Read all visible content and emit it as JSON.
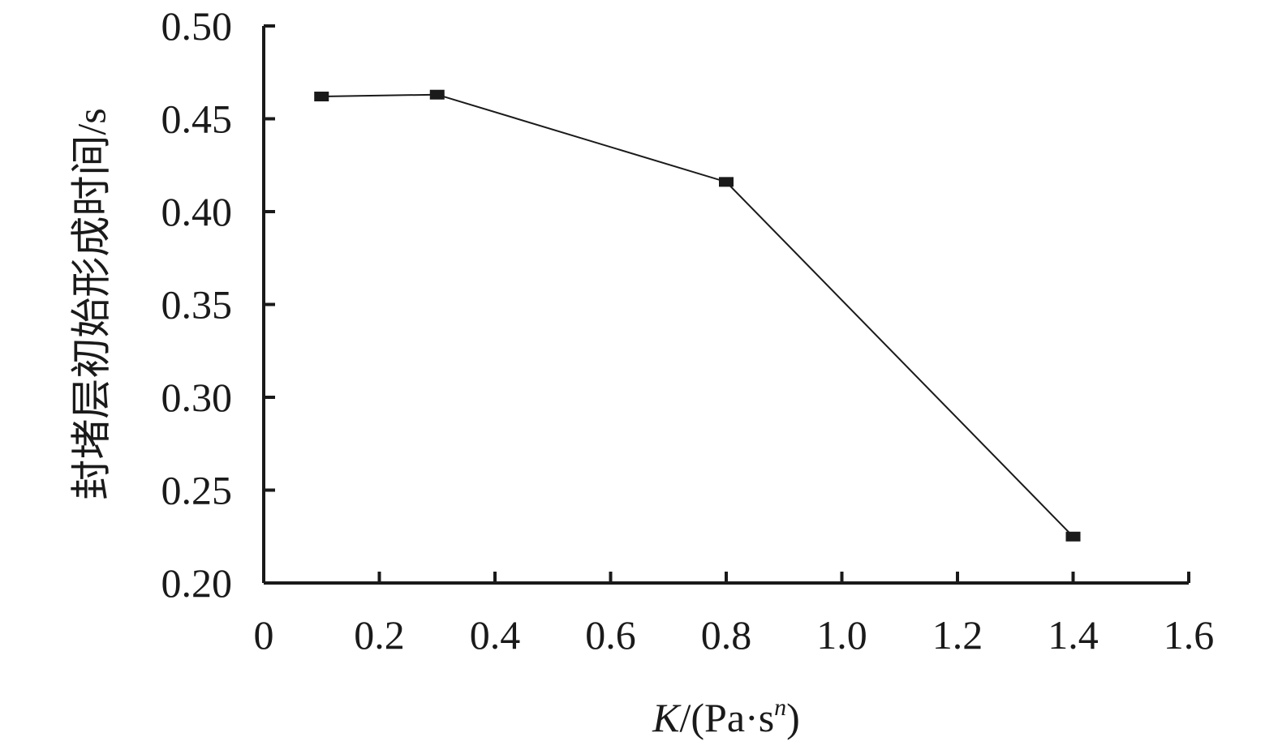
{
  "chart_data": {
    "type": "line",
    "xlabel": {
      "prefix": "K",
      "middle": "/(Pa·s",
      "superscript": "n",
      "suffix": ")"
    },
    "ylabel": "封堵层初始形成时间/s",
    "xlim": [
      0,
      1.6
    ],
    "ylim": [
      0.2,
      0.5
    ],
    "xticks": [
      "0",
      "0.2",
      "0.4",
      "0.6",
      "0.8",
      "1.0",
      "1.2",
      "1.4",
      "1.6"
    ],
    "yticks": [
      "0.20",
      "0.25",
      "0.30",
      "0.35",
      "0.40",
      "0.45",
      "0.50"
    ],
    "grid": false,
    "marker": "square",
    "line_color": "#1a1a1a",
    "series": [
      {
        "x": [
          0.1,
          0.3,
          0.8,
          1.4
        ],
        "y": [
          0.462,
          0.463,
          0.416,
          0.225
        ]
      }
    ]
  }
}
